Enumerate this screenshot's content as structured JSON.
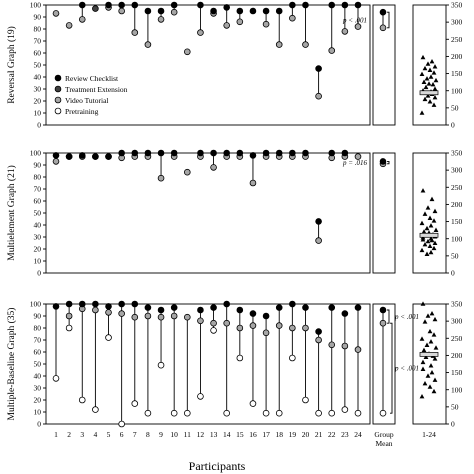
{
  "chart_data": {
    "type": "scatter",
    "xlabel": "Participants",
    "participants": [
      "1",
      "2",
      "3",
      "4",
      "5",
      "6",
      "7",
      "8",
      "9",
      "10",
      "11",
      "12",
      "13",
      "14",
      "15",
      "16",
      "17",
      "18",
      "19",
      "20",
      "21",
      "22",
      "23",
      "24"
    ],
    "group_mean_label": [
      "Group",
      "Mean"
    ],
    "range_label": "1-24",
    "left_ylim": [
      0,
      100
    ],
    "left_yticks": [
      "0",
      "10",
      "20",
      "30",
      "40",
      "50",
      "60",
      "70",
      "80",
      "90",
      "100"
    ],
    "right_ylim": [
      0,
      350
    ],
    "right_yticks": [
      "0",
      "50",
      "100",
      "150",
      "200",
      "250",
      "300",
      "350"
    ],
    "legend": {
      "placement": "top-left of top panel",
      "entries": [
        {
          "name": "Review Checklist",
          "color": "#000000"
        },
        {
          "name": "Treatment Extension",
          "color": "#404040"
        },
        {
          "name": "Video Tutorial",
          "color": "#a6a6a6"
        },
        {
          "name": "Pretraining",
          "color": "#ffffff"
        }
      ]
    },
    "panels": [
      {
        "ylabel": "Reversal Graph (19)",
        "series": [
          {
            "name": "Review Checklist",
            "values": [
              null,
              null,
              100,
              null,
              100,
              100,
              100,
              95,
              95,
              100,
              null,
              100,
              95,
              98,
              95,
              95,
              95,
              95,
              100,
              100,
              47,
              100,
              100,
              100
            ]
          },
          {
            "name": "Treatment Extension",
            "values": [
              null,
              null,
              null,
              97,
              null,
              null,
              null,
              null,
              null,
              null,
              null,
              null,
              null,
              null,
              null,
              null,
              null,
              null,
              null,
              null,
              null,
              null,
              null,
              null
            ]
          },
          {
            "name": "Video Tutorial",
            "values": [
              93,
              83,
              88,
              null,
              98,
              95,
              77,
              67,
              88,
              94,
              61,
              77,
              93,
              83,
              86,
              null,
              84,
              67,
              89,
              67,
              24,
              62,
              78,
              82
            ]
          },
          {
            "name": "Pretraining",
            "values": [
              null,
              null,
              null,
              null,
              null,
              null,
              null,
              null,
              null,
              null,
              null,
              null,
              null,
              null,
              null,
              null,
              null,
              null,
              null,
              null,
              null,
              null,
              null,
              null
            ]
          }
        ],
        "group_mean": {
          "review": 94,
          "video": 81,
          "pretraining": null
        },
        "p_values": [
          "p < .001"
        ],
        "right_points": [
          197,
          185,
          178,
          170,
          165,
          160,
          152,
          148,
          140,
          135,
          130,
          125,
          120,
          118,
          110,
          105,
          100,
          97,
          93,
          90,
          85,
          80,
          75,
          68,
          58,
          35
        ],
        "right_mean": 94
      },
      {
        "ylabel": "Multielement Graph (21)",
        "series": [
          {
            "name": "Review Checklist",
            "values": [
              98,
              97,
              98,
              97,
              97,
              100,
              100,
              100,
              100,
              100,
              null,
              100,
              100,
              100,
              100,
              98,
              100,
              100,
              100,
              100,
              43,
              100,
              100,
              null
            ]
          },
          {
            "name": "Treatment Extension",
            "values": [
              null,
              null,
              null,
              null,
              null,
              null,
              null,
              null,
              null,
              null,
              null,
              null,
              null,
              null,
              null,
              null,
              null,
              null,
              null,
              null,
              null,
              null,
              null,
              null
            ]
          },
          {
            "name": "Video Tutorial",
            "values": [
              93,
              97,
              97,
              97,
              97,
              96,
              97,
              97,
              79,
              97,
              84,
              97,
              88,
              97,
              97,
              75,
              97,
              97,
              97,
              97,
              27,
              96,
              97,
              97
            ]
          },
          {
            "name": "Pretraining",
            "values": [
              null,
              null,
              null,
              null,
              null,
              null,
              null,
              null,
              null,
              null,
              null,
              null,
              null,
              null,
              null,
              null,
              null,
              null,
              null,
              null,
              null,
              null,
              null,
              null
            ]
          }
        ],
        "group_mean": {
          "review": 93,
          "video": 91,
          "pretraining": null
        },
        "p_values": [
          "p = .016"
        ],
        "right_points": [
          240,
          215,
          190,
          180,
          172,
          160,
          152,
          145,
          138,
          130,
          125,
          120,
          117,
          112,
          110,
          106,
          103,
          100,
          97,
          95,
          92,
          87,
          83,
          78,
          72,
          66,
          60,
          55
        ],
        "right_mean": 110
      },
      {
        "ylabel": "Multiple-Baseline Graph (35)",
        "series": [
          {
            "name": "Review Checklist",
            "values": [
              98,
              100,
              100,
              100,
              98,
              100,
              100,
              97,
              95,
              97,
              null,
              95,
              97,
              100,
              95,
              92,
              90,
              97,
              100,
              97,
              77,
              97,
              92,
              97
            ]
          },
          {
            "name": "Treatment Extension",
            "values": [
              null,
              null,
              null,
              null,
              null,
              null,
              null,
              null,
              null,
              null,
              null,
              null,
              null,
              null,
              null,
              null,
              null,
              null,
              null,
              null,
              null,
              null,
              null,
              null
            ]
          },
          {
            "name": "Video Tutorial",
            "values": [
              null,
              90,
              96,
              95,
              93,
              92,
              89,
              90,
              89,
              90,
              89,
              86,
              84,
              84,
              80,
              82,
              76,
              82,
              80,
              80,
              70,
              66,
              65,
              62
            ]
          },
          {
            "name": "Pretraining",
            "values": [
              38,
              80,
              20,
              12,
              72,
              0,
              17,
              9,
              49,
              9,
              9,
              23,
              78,
              9,
              55,
              17,
              9,
              9,
              55,
              20,
              9,
              9,
              12,
              9
            ]
          }
        ],
        "group_mean": {
          "review": 95,
          "video": 84,
          "pretraining": 9
        },
        "p_values": [
          "p < .001",
          "p < .001"
        ],
        "right_points": [
          350,
          322,
          315,
          305,
          298,
          270,
          260,
          248,
          240,
          230,
          222,
          215,
          205,
          198,
          195,
          190,
          180,
          170,
          160,
          150,
          140,
          128,
          118,
          108,
          95,
          80
        ],
        "right_mean": 203
      }
    ]
  }
}
